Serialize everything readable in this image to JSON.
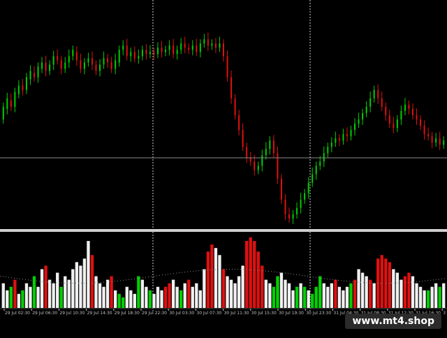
{
  "chart_data": {
    "type": "candlestick_with_volume",
    "price_series": [
      [
        0.5,
        0.56
      ],
      [
        0.55,
        0.6
      ],
      [
        0.59,
        0.56
      ],
      [
        0.56,
        0.63
      ],
      [
        0.62,
        0.66
      ],
      [
        0.66,
        0.64
      ],
      [
        0.64,
        0.7
      ],
      [
        0.69,
        0.73
      ],
      [
        0.72,
        0.7
      ],
      [
        0.7,
        0.75
      ],
      [
        0.74,
        0.77
      ],
      [
        0.77,
        0.73
      ],
      [
        0.73,
        0.76
      ],
      [
        0.76,
        0.8
      ],
      [
        0.8,
        0.78
      ],
      [
        0.78,
        0.74
      ],
      [
        0.74,
        0.77
      ],
      [
        0.77,
        0.8
      ],
      [
        0.8,
        0.83
      ],
      [
        0.82,
        0.78
      ],
      [
        0.78,
        0.74
      ],
      [
        0.74,
        0.77
      ],
      [
        0.77,
        0.79
      ],
      [
        0.79,
        0.76
      ],
      [
        0.76,
        0.73
      ],
      [
        0.73,
        0.76
      ],
      [
        0.76,
        0.79
      ],
      [
        0.79,
        0.77
      ],
      [
        0.77,
        0.74
      ],
      [
        0.74,
        0.78
      ],
      [
        0.77,
        0.83
      ],
      [
        0.83,
        0.85
      ],
      [
        0.85,
        0.8
      ],
      [
        0.8,
        0.82
      ],
      [
        0.82,
        0.79
      ],
      [
        0.79,
        0.8
      ],
      [
        0.8,
        0.83
      ],
      [
        0.83,
        0.81
      ],
      [
        0.81,
        0.82
      ],
      [
        0.82,
        0.81
      ],
      [
        0.81,
        0.84
      ],
      [
        0.84,
        0.82
      ],
      [
        0.82,
        0.83
      ],
      [
        0.83,
        0.85
      ],
      [
        0.85,
        0.81
      ],
      [
        0.81,
        0.83
      ],
      [
        0.83,
        0.86
      ],
      [
        0.86,
        0.84
      ],
      [
        0.84,
        0.83
      ],
      [
        0.83,
        0.85
      ],
      [
        0.85,
        0.82
      ],
      [
        0.82,
        0.86
      ],
      [
        0.86,
        0.88
      ],
      [
        0.88,
        0.85
      ],
      [
        0.85,
        0.86
      ],
      [
        0.86,
        0.84
      ],
      [
        0.84,
        0.86
      ],
      [
        0.86,
        0.8
      ],
      [
        0.8,
        0.7
      ],
      [
        0.7,
        0.6
      ],
      [
        0.6,
        0.52
      ],
      [
        0.52,
        0.45
      ],
      [
        0.45,
        0.37
      ],
      [
        0.37,
        0.32
      ],
      [
        0.32,
        0.3
      ],
      [
        0.3,
        0.26
      ],
      [
        0.26,
        0.28
      ],
      [
        0.28,
        0.33
      ],
      [
        0.33,
        0.36
      ],
      [
        0.36,
        0.4
      ],
      [
        0.4,
        0.34
      ],
      [
        0.34,
        0.22
      ],
      [
        0.22,
        0.12
      ],
      [
        0.12,
        0.05
      ],
      [
        0.05,
        0.03
      ],
      [
        0.03,
        0.05
      ],
      [
        0.05,
        0.08
      ],
      [
        0.08,
        0.12
      ],
      [
        0.12,
        0.15
      ],
      [
        0.15,
        0.2
      ],
      [
        0.2,
        0.24
      ],
      [
        0.24,
        0.28
      ],
      [
        0.28,
        0.3
      ],
      [
        0.3,
        0.34
      ],
      [
        0.34,
        0.37
      ],
      [
        0.37,
        0.39
      ],
      [
        0.39,
        0.41
      ],
      [
        0.41,
        0.4
      ],
      [
        0.4,
        0.43
      ],
      [
        0.43,
        0.42
      ],
      [
        0.42,
        0.45
      ],
      [
        0.45,
        0.48
      ],
      [
        0.48,
        0.5
      ],
      [
        0.5,
        0.53
      ],
      [
        0.53,
        0.56
      ],
      [
        0.56,
        0.6
      ],
      [
        0.6,
        0.64
      ],
      [
        0.64,
        0.6
      ],
      [
        0.6,
        0.56
      ],
      [
        0.56,
        0.52
      ],
      [
        0.52,
        0.48
      ],
      [
        0.48,
        0.46
      ],
      [
        0.46,
        0.5
      ],
      [
        0.5,
        0.54
      ],
      [
        0.54,
        0.57
      ],
      [
        0.57,
        0.55
      ],
      [
        0.55,
        0.52
      ],
      [
        0.52,
        0.5
      ],
      [
        0.5,
        0.47
      ],
      [
        0.47,
        0.43
      ],
      [
        0.43,
        0.42
      ],
      [
        0.42,
        0.39
      ],
      [
        0.39,
        0.41
      ],
      [
        0.41,
        0.38
      ],
      [
        0.38,
        0.4
      ]
    ],
    "volume_series": [
      [
        0.35,
        "w"
      ],
      [
        0.25,
        "w"
      ],
      [
        0.3,
        "g"
      ],
      [
        0.4,
        "r"
      ],
      [
        0.2,
        "w"
      ],
      [
        0.25,
        "g"
      ],
      [
        0.35,
        "w"
      ],
      [
        0.3,
        "w"
      ],
      [
        0.45,
        "g"
      ],
      [
        0.3,
        "w"
      ],
      [
        0.55,
        "w"
      ],
      [
        0.6,
        "r"
      ],
      [
        0.4,
        "w"
      ],
      [
        0.35,
        "w"
      ],
      [
        0.5,
        "w"
      ],
      [
        0.3,
        "g"
      ],
      [
        0.45,
        "w"
      ],
      [
        0.4,
        "w"
      ],
      [
        0.55,
        "w"
      ],
      [
        0.65,
        "w"
      ],
      [
        0.6,
        "w"
      ],
      [
        0.7,
        "w"
      ],
      [
        0.95,
        "w"
      ],
      [
        0.75,
        "r"
      ],
      [
        0.45,
        "w"
      ],
      [
        0.35,
        "w"
      ],
      [
        0.3,
        "w"
      ],
      [
        0.4,
        "w"
      ],
      [
        0.45,
        "r"
      ],
      [
        0.25,
        "w"
      ],
      [
        0.2,
        "g"
      ],
      [
        0.15,
        "g"
      ],
      [
        0.3,
        "w"
      ],
      [
        0.25,
        "w"
      ],
      [
        0.2,
        "w"
      ],
      [
        0.45,
        "g"
      ],
      [
        0.4,
        "w"
      ],
      [
        0.3,
        "w"
      ],
      [
        0.25,
        "g"
      ],
      [
        0.2,
        "w"
      ],
      [
        0.3,
        "w"
      ],
      [
        0.25,
        "w"
      ],
      [
        0.3,
        "r"
      ],
      [
        0.35,
        "r"
      ],
      [
        0.4,
        "w"
      ],
      [
        0.3,
        "w"
      ],
      [
        0.25,
        "g"
      ],
      [
        0.35,
        "w"
      ],
      [
        0.4,
        "r"
      ],
      [
        0.3,
        "w"
      ],
      [
        0.35,
        "w"
      ],
      [
        0.25,
        "w"
      ],
      [
        0.55,
        "w"
      ],
      [
        0.8,
        "r"
      ],
      [
        0.9,
        "r"
      ],
      [
        0.85,
        "w"
      ],
      [
        0.75,
        "w"
      ],
      [
        0.55,
        "r"
      ],
      [
        0.45,
        "w"
      ],
      [
        0.4,
        "w"
      ],
      [
        0.35,
        "w"
      ],
      [
        0.45,
        "w"
      ],
      [
        0.6,
        "w"
      ],
      [
        0.95,
        "r"
      ],
      [
        1.0,
        "r"
      ],
      [
        0.95,
        "r"
      ],
      [
        0.8,
        "r"
      ],
      [
        0.6,
        "r"
      ],
      [
        0.4,
        "w"
      ],
      [
        0.35,
        "w"
      ],
      [
        0.3,
        "g"
      ],
      [
        0.45,
        "g"
      ],
      [
        0.5,
        "w"
      ],
      [
        0.4,
        "w"
      ],
      [
        0.35,
        "w"
      ],
      [
        0.25,
        "w"
      ],
      [
        0.3,
        "g"
      ],
      [
        0.35,
        "w"
      ],
      [
        0.3,
        "g"
      ],
      [
        0.25,
        "w"
      ],
      [
        0.2,
        "g"
      ],
      [
        0.3,
        "g"
      ],
      [
        0.45,
        "g"
      ],
      [
        0.35,
        "w"
      ],
      [
        0.3,
        "w"
      ],
      [
        0.35,
        "w"
      ],
      [
        0.4,
        "r"
      ],
      [
        0.3,
        "w"
      ],
      [
        0.25,
        "w"
      ],
      [
        0.3,
        "w"
      ],
      [
        0.35,
        "g"
      ],
      [
        0.4,
        "r"
      ],
      [
        0.55,
        "w"
      ],
      [
        0.5,
        "w"
      ],
      [
        0.45,
        "w"
      ],
      [
        0.4,
        "r"
      ],
      [
        0.35,
        "w"
      ],
      [
        0.7,
        "r"
      ],
      [
        0.75,
        "r"
      ],
      [
        0.7,
        "r"
      ],
      [
        0.65,
        "r"
      ],
      [
        0.55,
        "w"
      ],
      [
        0.5,
        "w"
      ],
      [
        0.4,
        "w"
      ],
      [
        0.45,
        "r"
      ],
      [
        0.5,
        "r"
      ],
      [
        0.45,
        "w"
      ],
      [
        0.35,
        "w"
      ],
      [
        0.3,
        "w"
      ],
      [
        0.25,
        "w"
      ],
      [
        0.25,
        "g"
      ],
      [
        0.3,
        "w"
      ],
      [
        0.35,
        "w"
      ],
      [
        0.3,
        "g"
      ],
      [
        0.35,
        "w"
      ]
    ],
    "x_tick_labels": [
      "29 Jul 02:30",
      "29 Jul 06:30",
      "29 Jul 10:30",
      "29 Jul 14:30",
      "29 Jul 18:30",
      "29 Jul 22:30",
      "30 Jul 03:30",
      "30 Jul 07:30",
      "30 Jul 11:30",
      "30 Jul 15:30",
      "30 Jul 19:30",
      "30 Jul 23:30",
      "31 Jul 04:30",
      "31 Jul 08:30",
      "31 Jul 12:30",
      "31 Jul 16:30",
      "3"
    ],
    "grid": false,
    "colors": {
      "background": "#000000",
      "bull": "#00d000",
      "bear": "#e01010",
      "neutral_volume": "#f0f0f0",
      "separator": "#cfcfcf",
      "crosshair": "#b0b0b0",
      "axis_text": "#c0c0c0"
    }
  },
  "watermark": "www.mt4.shop"
}
